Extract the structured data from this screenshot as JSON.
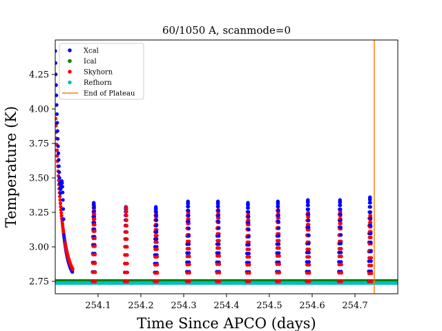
{
  "chart_data": {
    "type": "scatter",
    "title": "60/1050 A, scanmode=0",
    "xlabel": "Time Since APCO (days)",
    "ylabel": "Temperature (K)",
    "xlim": [
      254.0,
      254.8
    ],
    "ylim": [
      2.66,
      4.5
    ],
    "xticks": [
      254.1,
      254.2,
      254.3,
      254.4,
      254.5,
      254.6,
      254.7
    ],
    "xtick_labels": [
      "254.1",
      "254.2",
      "254.3",
      "254.4",
      "254.5",
      "254.6",
      "254.7"
    ],
    "yticks": [
      2.75,
      3.0,
      3.25,
      3.5,
      3.75,
      4.0,
      4.25
    ],
    "ytick_labels": [
      "2.75",
      "3.00",
      "3.25",
      "3.50",
      "3.75",
      "4.00",
      "4.25"
    ],
    "grid": false,
    "legend_position": "top-left",
    "baseline_temperature": 2.75,
    "series": [
      {
        "name": "Xcal",
        "color": "#0000ff"
      },
      {
        "name": "Ical",
        "color": "#008000"
      },
      {
        "name": "Skyhorn",
        "color": "#ff0000"
      },
      {
        "name": "Refhorn",
        "color": "#00bfbf"
      }
    ],
    "initial_decay": {
      "x_start": 254.0,
      "x_end": 254.04,
      "xcal_peak": 4.42,
      "skyhorn_peak": 3.93
    },
    "peaks": [
      {
        "x": 254.09,
        "xcal": 3.32,
        "skyhorn": 3.31
      },
      {
        "x": 254.165,
        "xcal": 3.29,
        "skyhorn": 3.3
      },
      {
        "x": 254.235,
        "xcal": 3.29,
        "skyhorn": 3.26
      },
      {
        "x": 254.31,
        "xcal": 3.33,
        "skyhorn": 3.27
      },
      {
        "x": 254.38,
        "xcal": 3.33,
        "skyhorn": 3.28
      },
      {
        "x": 254.45,
        "xcal": 3.32,
        "skyhorn": 3.26
      },
      {
        "x": 254.52,
        "xcal": 3.33,
        "skyhorn": 3.28
      },
      {
        "x": 254.59,
        "xcal": 3.34,
        "skyhorn": 3.26
      },
      {
        "x": 254.665,
        "xcal": 3.34,
        "skyhorn": 3.27
      },
      {
        "x": 254.735,
        "xcal": 3.36,
        "skyhorn": 3.24
      }
    ],
    "vertical_line": {
      "name": "End of Plateau",
      "x": 254.745,
      "color": "#ff7f0e"
    }
  }
}
